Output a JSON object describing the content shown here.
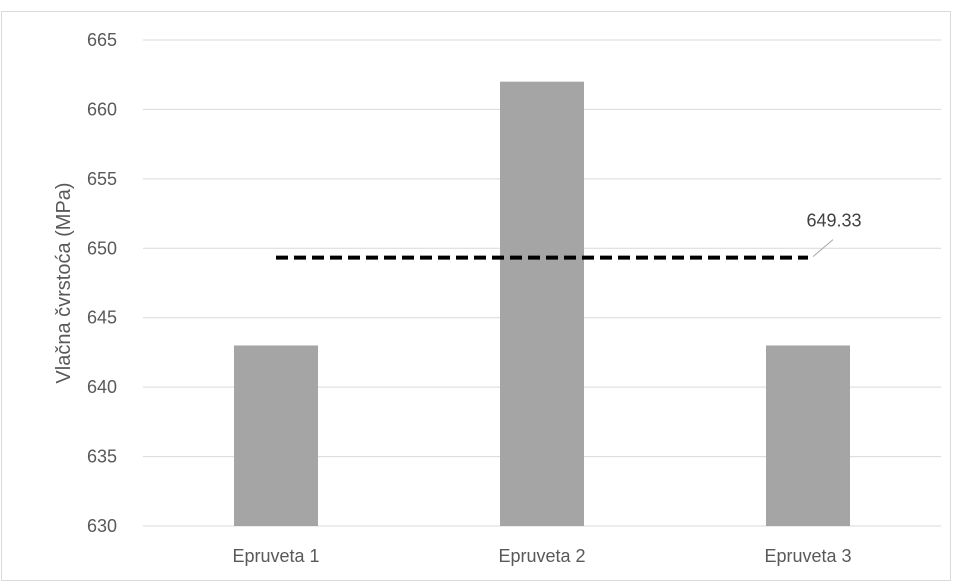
{
  "chart_data": {
    "type": "bar",
    "categories": [
      "Epruveta 1",
      "Epruveta 2",
      "Epruveta 3"
    ],
    "values": [
      643,
      662,
      643
    ],
    "ylabel": "Vlačna čvrstoća (MPa)",
    "xlabel": "",
    "ylim": [
      630,
      665
    ],
    "yticks": [
      630,
      635,
      640,
      645,
      650,
      655,
      660,
      665
    ],
    "grid": true,
    "bar_color": "#a5a5a5",
    "average_line": {
      "value": 649.33,
      "label": "649.33",
      "style": "dashed",
      "color": "#000000"
    }
  }
}
